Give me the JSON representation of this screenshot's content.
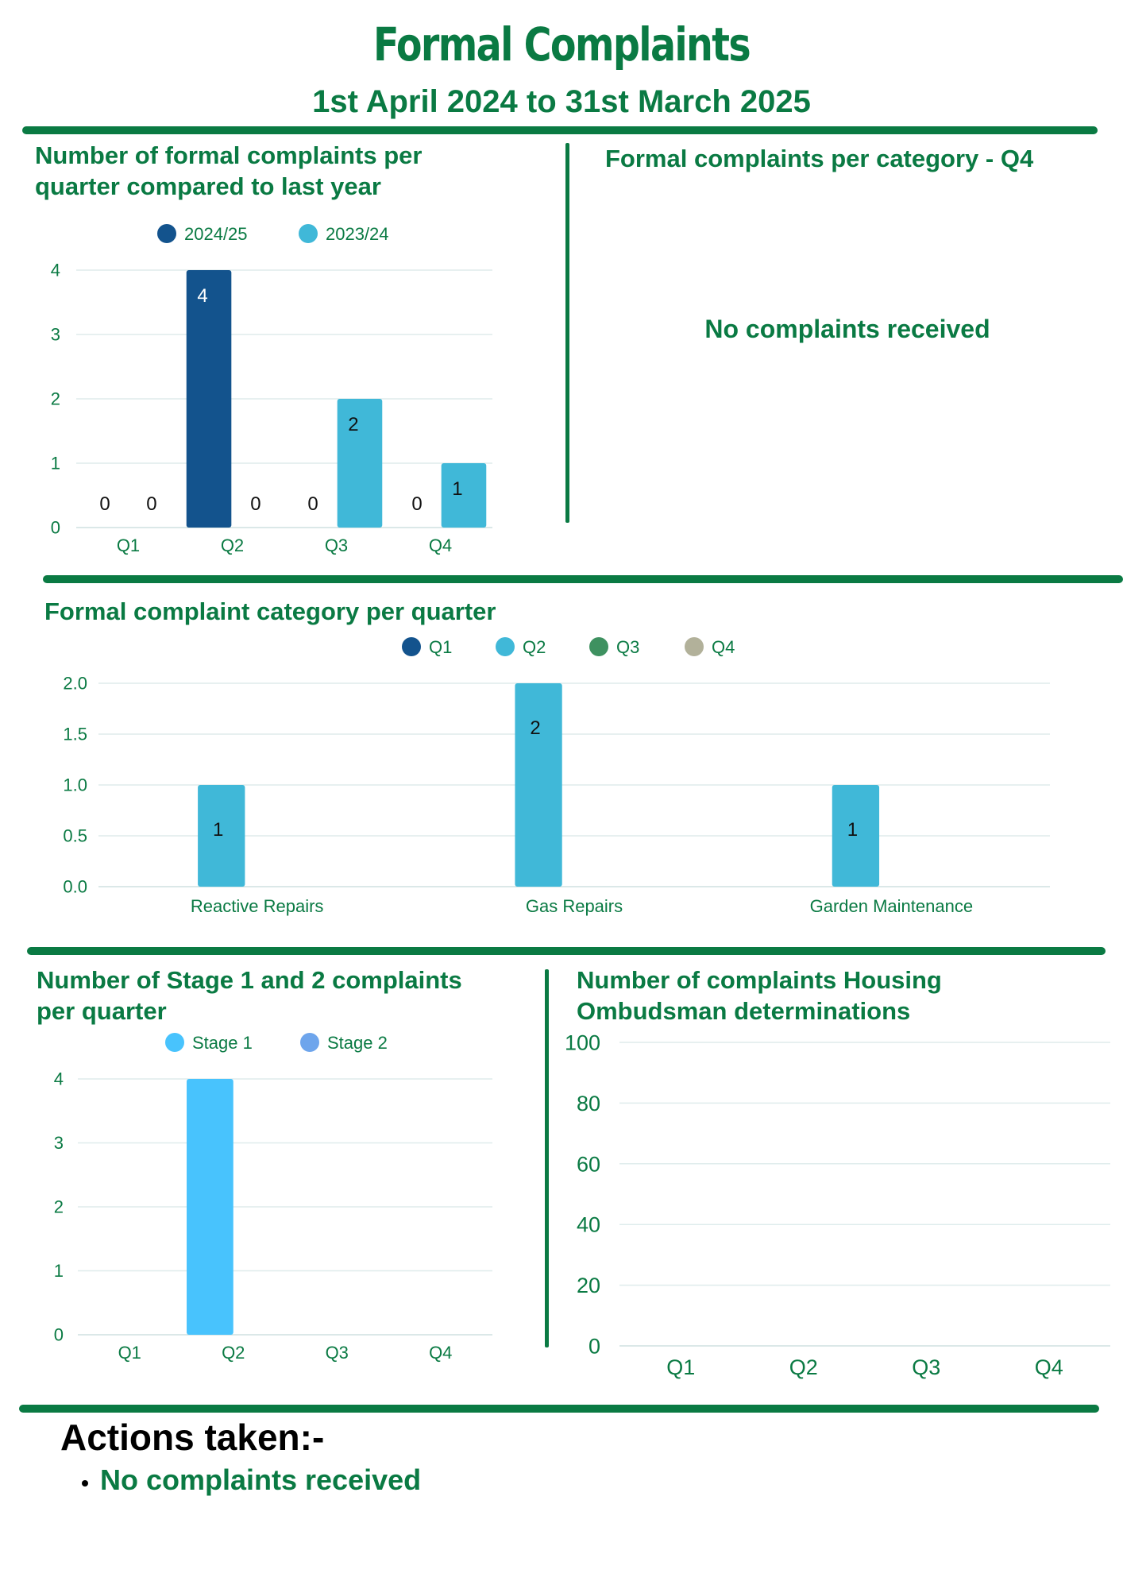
{
  "header": {
    "title": "Formal Complaints",
    "subtitle": "1st April 2024 to 31st March 2025"
  },
  "colors": {
    "brand": "#0a7a43",
    "dark_blue": "#13538d",
    "light_blue": "#40b8d8",
    "green": "#3e9160",
    "grey": "#b2b19a",
    "stage1": "#48c3fd",
    "stage2": "#6ea5ec"
  },
  "sections": {
    "q4_category": {
      "title": "Formal complaints per category - Q4",
      "message": "No complaints received"
    }
  },
  "actions": {
    "heading": "Actions taken:-",
    "items": [
      "No complaints received"
    ]
  },
  "chart_data": [
    {
      "id": "per-quarter",
      "type": "bar",
      "title": "Number of formal complaints per quarter compared to last year",
      "categories": [
        "Q1",
        "Q2",
        "Q3",
        "Q4"
      ],
      "series": [
        {
          "name": "2024/25",
          "values": [
            0,
            4,
            0,
            0
          ],
          "color": "#13538d"
        },
        {
          "name": "2023/24",
          "values": [
            0,
            0,
            2,
            1
          ],
          "color": "#40b8d8"
        }
      ],
      "ylim": [
        0,
        4
      ],
      "yticks": [
        "0",
        "1",
        "2",
        "3",
        "4"
      ],
      "data_labels": true,
      "legend": "top",
      "grid": true
    },
    {
      "id": "category",
      "type": "bar",
      "title": "Formal complaint category per quarter",
      "categories": [
        "Reactive Repairs",
        "Gas Repairs",
        "Garden Maintenance"
      ],
      "series": [
        {
          "name": "Q1",
          "values": [
            0,
            0,
            0
          ],
          "color": "#13538d"
        },
        {
          "name": "Q2",
          "values": [
            1,
            2,
            1
          ],
          "color": "#40b8d8"
        },
        {
          "name": "Q3",
          "values": [
            0,
            0,
            0
          ],
          "color": "#3e9160"
        },
        {
          "name": "Q4",
          "values": [
            0,
            0,
            0
          ],
          "color": "#b2b19a"
        }
      ],
      "ylim": [
        0,
        2
      ],
      "yticks": [
        "0.0",
        "0.5",
        "1.0",
        "1.5",
        "2.0"
      ],
      "data_labels": true,
      "legend": "top",
      "grid": true
    },
    {
      "id": "stages",
      "type": "bar",
      "title": "Number of Stage 1 and 2 complaints per quarter",
      "categories": [
        "Q1",
        "Q2",
        "Q3",
        "Q4"
      ],
      "series": [
        {
          "name": "Stage 1",
          "values": [
            0,
            4,
            0,
            0
          ],
          "color": "#48c3fd"
        },
        {
          "name": "Stage 2",
          "values": [
            0,
            0,
            0,
            0
          ],
          "color": "#6ea5ec"
        }
      ],
      "ylim": [
        0,
        4
      ],
      "yticks": [
        "0",
        "1",
        "2",
        "3",
        "4"
      ],
      "data_labels": false,
      "legend": "top",
      "grid": true
    },
    {
      "id": "ombudsman",
      "type": "bar",
      "title": "Number of complaints  Housing Ombudsman determinations",
      "categories": [
        "Q1",
        "Q2",
        "Q3",
        "Q4"
      ],
      "series": [],
      "ylim": [
        0,
        100
      ],
      "yticks": [
        "0",
        "20",
        "40",
        "60",
        "80",
        "100"
      ],
      "data_labels": false,
      "legend": "none",
      "grid": true
    }
  ]
}
